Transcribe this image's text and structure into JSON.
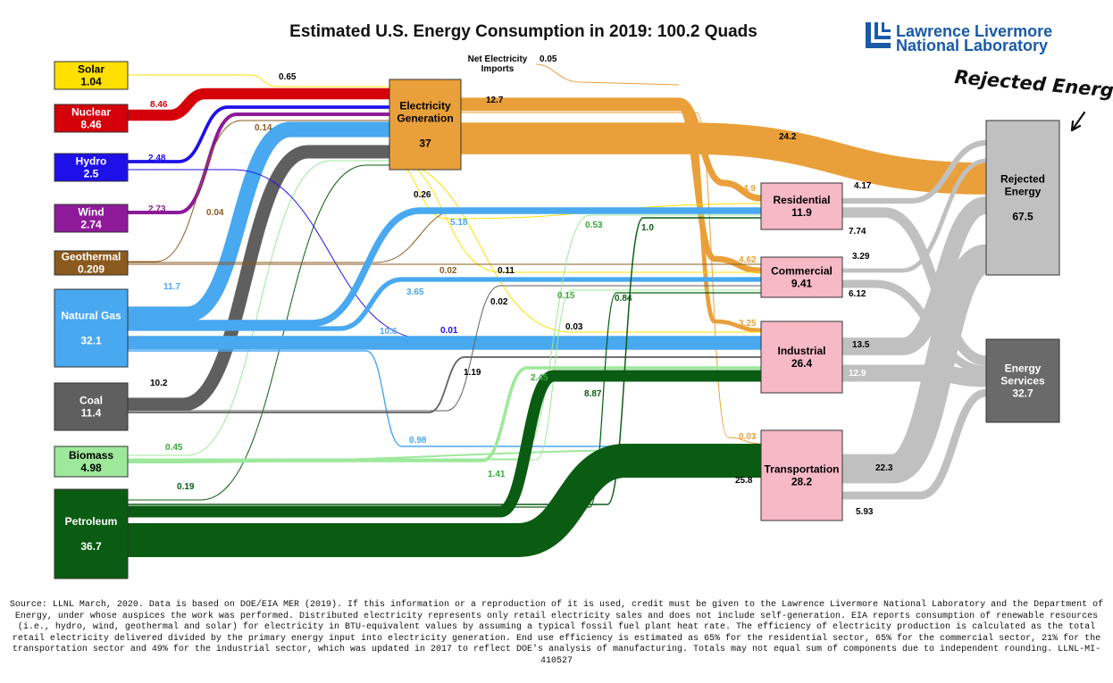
{
  "title": "Estimated U.S. Energy Consumption in 2019: 100.2 Quads",
  "logo": {
    "line1": "Lawrence Livermore",
    "line2": "National Laboratory"
  },
  "rejected_annotation": "Rejected Energy",
  "sources": [
    {
      "id": "solar",
      "name": "Solar",
      "value": "1.04",
      "fill": "#ffe000",
      "text": "#000000"
    },
    {
      "id": "nuclear",
      "name": "Nuclear",
      "value": "8.46",
      "fill": "#d4000a",
      "text": "#ffffff"
    },
    {
      "id": "hydro",
      "name": "Hydro",
      "value": "2.5",
      "fill": "#1e10e8",
      "text": "#ffffff"
    },
    {
      "id": "wind",
      "name": "Wind",
      "value": "2.74",
      "fill": "#8e1a9a",
      "text": "#ffffff"
    },
    {
      "id": "geothermal",
      "name": "Geothermal",
      "value": "0.209",
      "fill": "#8b5a1e",
      "text": "#ffffff"
    },
    {
      "id": "natural-gas",
      "name": "Natural Gas",
      "value": "32.1",
      "fill": "#48a8f0",
      "text": "#ffffff"
    },
    {
      "id": "coal",
      "name": "Coal",
      "value": "11.4",
      "fill": "#5f5f5f",
      "text": "#ffffff"
    },
    {
      "id": "biomass",
      "name": "Biomass",
      "value": "4.98",
      "fill": "#9de89a",
      "text": "#000000"
    },
    {
      "id": "petroleum",
      "name": "Petroleum",
      "value": "36.7",
      "fill": "#0a5c12",
      "text": "#ffffff"
    }
  ],
  "electricity": {
    "name": "Electricity Generation",
    "value": "37",
    "fill": "#e9a03a"
  },
  "net_imports": {
    "name": "Net Electricity Imports",
    "value": "0.05"
  },
  "sectors": [
    {
      "id": "residential",
      "name": "Residential",
      "value": "11.9"
    },
    {
      "id": "commercial",
      "name": "Commercial",
      "value": "9.41"
    },
    {
      "id": "industrial",
      "name": "Industrial",
      "value": "26.4"
    },
    {
      "id": "transportation",
      "name": "Transportation",
      "value": "28.2"
    }
  ],
  "sector_fill": "#f7b9c6",
  "rejected": {
    "name": "Rejected Energy",
    "value": "67.5",
    "fill": "#c0c0c0"
  },
  "services": {
    "name": "Energy Services",
    "value": "32.7",
    "fill": "#6a6a6a"
  },
  "flows": [
    {
      "from": "solar",
      "to": "electricity",
      "value": 0.65,
      "label": "0.65"
    },
    {
      "from": "nuclear",
      "to": "electricity",
      "value": 8.46,
      "label": "8.46"
    },
    {
      "from": "hydro",
      "to": "electricity",
      "value": 2.48,
      "label": "2.48"
    },
    {
      "from": "wind",
      "to": "electricity",
      "value": 2.73,
      "label": "2.73"
    },
    {
      "from": "geothermal",
      "to": "electricity",
      "value": 0.14,
      "label": "0.14"
    },
    {
      "from": "natural-gas",
      "to": "electricity",
      "value": 11.7,
      "label": "11.7"
    },
    {
      "from": "coal",
      "to": "electricity",
      "value": 10.2,
      "label": "10.2"
    },
    {
      "from": "biomass",
      "to": "electricity",
      "value": 0.45,
      "label": "0.45"
    },
    {
      "from": "petroleum",
      "to": "electricity",
      "value": 0.19,
      "label": "0.19"
    },
    {
      "from": "electricity",
      "to": "rejected",
      "value": 24.2,
      "label": "24.2"
    },
    {
      "from": "electricity",
      "to": "residential",
      "value": 4.9,
      "label": "4.9"
    },
    {
      "from": "electricity",
      "to": "commercial",
      "value": 4.62,
      "label": "4.62"
    },
    {
      "from": "electricity",
      "to": "industrial",
      "value": 3.25,
      "label": "3.25"
    },
    {
      "from": "electricity",
      "to": "transportation",
      "value": 0.03,
      "label": "0.03"
    },
    {
      "from": "electricity",
      "to": "sectors",
      "value": 12.7,
      "label": "12.7"
    },
    {
      "from": "solar",
      "to": "residential",
      "value": 0.26,
      "label": "0.26"
    },
    {
      "from": "solar",
      "to": "industrial",
      "value": 0.03,
      "label": "0.03"
    },
    {
      "from": "solar",
      "to": "commercial",
      "value": 0.11,
      "label": "0.11"
    },
    {
      "from": "hydro",
      "to": "industrial",
      "value": 0.01,
      "label": "0.01"
    },
    {
      "from": "geothermal",
      "to": "residential",
      "value": 0.04,
      "label": "0.04"
    },
    {
      "from": "geothermal",
      "to": "commercial",
      "value": 0.02,
      "label": "0.02"
    },
    {
      "from": "natural-gas",
      "to": "residential",
      "value": 5.18,
      "label": "5.18"
    },
    {
      "from": "natural-gas",
      "to": "commercial",
      "value": 3.65,
      "label": "3.65"
    },
    {
      "from": "natural-gas",
      "to": "industrial",
      "value": 10.6,
      "label": "10.6"
    },
    {
      "from": "natural-gas",
      "to": "transportation",
      "value": 0.98,
      "label": "0.98"
    },
    {
      "from": "coal",
      "to": "commercial",
      "value": 0.02,
      "label": "0.02"
    },
    {
      "from": "coal",
      "to": "industrial",
      "value": 1.19,
      "label": "1.19"
    },
    {
      "from": "biomass",
      "to": "residential",
      "value": 0.53,
      "label": "0.53"
    },
    {
      "from": "biomass",
      "to": "commercial",
      "value": 0.15,
      "label": "0.15"
    },
    {
      "from": "biomass",
      "to": "industrial",
      "value": 2.45,
      "label": "2.45"
    },
    {
      "from": "biomass",
      "to": "transportation",
      "value": 1.41,
      "label": "1.41"
    },
    {
      "from": "petroleum",
      "to": "residential",
      "value": 1.0,
      "label": "1.0"
    },
    {
      "from": "petroleum",
      "to": "commercial",
      "value": 0.84,
      "label": "0.84"
    },
    {
      "from": "petroleum",
      "to": "industrial",
      "value": 8.87,
      "label": "8.87"
    },
    {
      "from": "petroleum",
      "to": "transportation",
      "value": 25.8,
      "label": "25.8"
    },
    {
      "from": "residential",
      "to": "rejected",
      "value": 4.17,
      "label": "4.17"
    },
    {
      "from": "residential",
      "to": "services",
      "value": 7.74,
      "label": "7.74"
    },
    {
      "from": "commercial",
      "to": "rejected",
      "value": 3.29,
      "label": "3.29"
    },
    {
      "from": "commercial",
      "to": "services",
      "value": 6.12,
      "label": "6.12"
    },
    {
      "from": "industrial",
      "to": "rejected",
      "value": 13.5,
      "label": "13.5"
    },
    {
      "from": "industrial",
      "to": "services",
      "value": 12.9,
      "label": "12.9"
    },
    {
      "from": "transportation",
      "to": "rejected",
      "value": 22.3,
      "label": "22.3"
    },
    {
      "from": "transportation",
      "to": "services",
      "value": 5.93,
      "label": "5.93"
    }
  ],
  "footnote": "Source: LLNL March, 2020. Data is based on DOE/EIA MER (2019). If this information or a reproduction of it is used, credit must be given to the Lawrence Livermore National Laboratory and the Department of Energy, under whose auspices the work was performed. Distributed electricity represents only retail electricity sales and does not include self-generation. EIA reports consumption of renewable resources (i.e., hydro, wind, geothermal and solar) for electricity in BTU-equivalent values by assuming a typical fossil fuel plant heat rate. The efficiency of electricity production is calculated as the total retail electricity delivered divided by the primary energy input into electricity generation. End use efficiency is estimated as 65% for the residential sector, 65% for the commercial sector, 21% for the transportation sector and 49% for the industrial sector, which was updated in 2017 to reflect DOE's analysis of manufacturing. Totals may not equal sum of components due to independent rounding. LLNL-MI-410527"
}
